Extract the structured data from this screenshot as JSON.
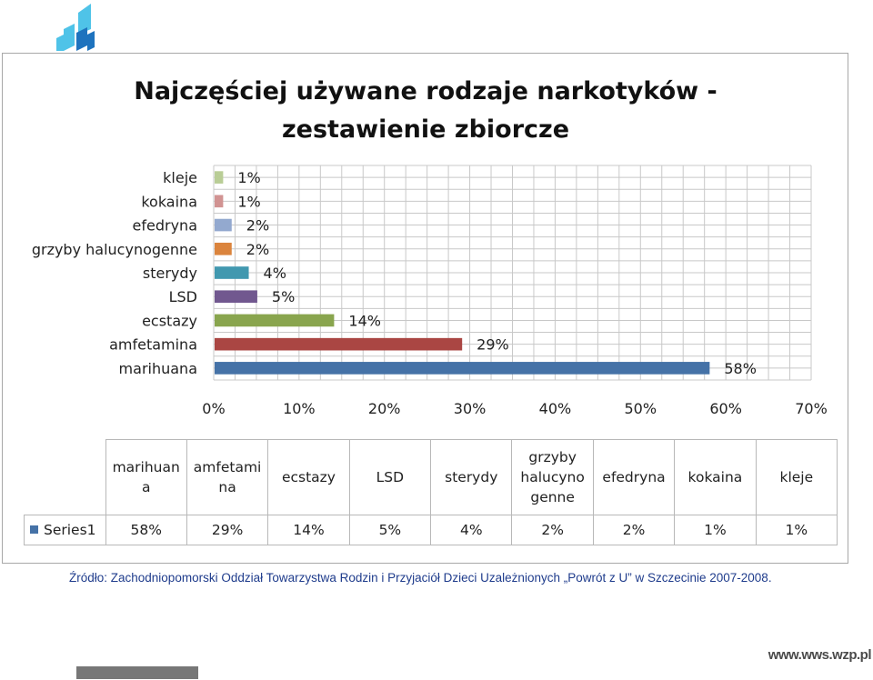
{
  "chart_data": {
    "type": "bar",
    "orientation": "horizontal",
    "title": "Najczęściej używane rodzaje narkotyków - zestawienie zbiorcze",
    "title_lines": [
      "Najczęściej używane rodzaje narkotyków -",
      "zestawienie zbiorcze"
    ],
    "categories": [
      "marihuana",
      "amfetamina",
      "ecstazy",
      "LSD",
      "sterydy",
      "grzyby halucynogenne",
      "efedryna",
      "kokaina",
      "kleje"
    ],
    "series": [
      {
        "name": "Series1",
        "values": [
          58,
          29,
          14,
          5,
          4,
          2,
          2,
          1,
          1
        ],
        "labels": [
          "58%",
          "29%",
          "14%",
          "5%",
          "4%",
          "2%",
          "2%",
          "1%",
          "1%"
        ]
      }
    ],
    "bar_colors": [
      "#4572a7",
      "#aa4643",
      "#89a54e",
      "#71588f",
      "#4198af",
      "#db843d",
      "#93a9cf",
      "#d19392",
      "#b9cd96"
    ],
    "xlim": [
      0,
      70
    ],
    "x_ticks": [
      0,
      10,
      20,
      30,
      40,
      50,
      60,
      70
    ],
    "x_tick_labels": [
      "0%",
      "10%",
      "20%",
      "30%",
      "40%",
      "50%",
      "60%",
      "70%"
    ],
    "grid": true,
    "data_table": {
      "headers": [
        [
          "marihuan",
          "a"
        ],
        [
          "amfetami",
          "na"
        ],
        [
          "ecstazy"
        ],
        [
          "LSD"
        ],
        [
          "sterydy"
        ],
        [
          "grzyby",
          "halucyno",
          "genne"
        ],
        [
          "efedryna"
        ],
        [
          "kokaina"
        ],
        [
          "kleje"
        ]
      ],
      "legend_label": "Series1",
      "values": [
        "58%",
        "29%",
        "14%",
        "5%",
        "4%",
        "2%",
        "2%",
        "1%",
        "1%"
      ]
    }
  },
  "source_note": "Źródło: Zachodniopomorski Oddział Towarzystwa Rodzin i Przyjaciół Dzieci Uzależnionych  „Powrót z U”  w Szczecinie 2007-2008.",
  "website": "www.wws.wzp.pl",
  "colors": {
    "series": "#4572a7",
    "grid": "#c8c8c8",
    "axis_text": "#222222",
    "source_text": "#1f3c8c",
    "logo_light": "#4fc3e8",
    "logo_dark": "#1e73be"
  },
  "icons": {
    "logo": "building-blocks-logo-icon"
  }
}
